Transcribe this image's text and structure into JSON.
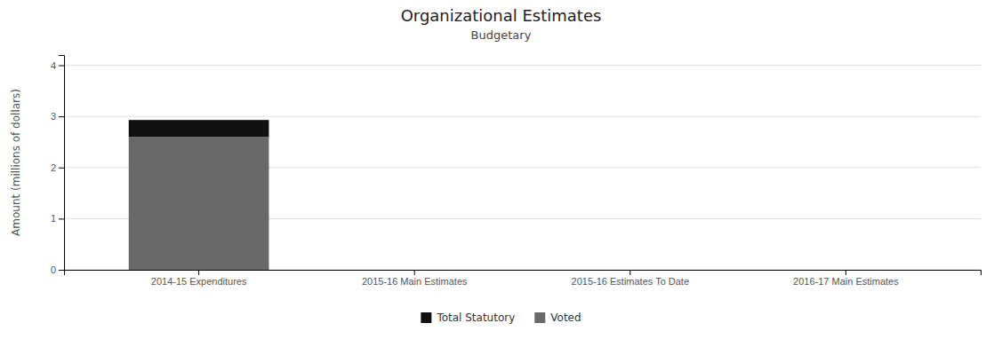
{
  "chart_data": {
    "type": "bar",
    "stacked": true,
    "title": "Organizational Estimates",
    "subtitle": "Budgetary",
    "ylabel": "Amount (millions of dollars)",
    "categories": [
      "2014-15 Expenditures",
      "2015-16 Main Estimates",
      "2015-16 Estimates To Date",
      "2016-17 Main Estimates"
    ],
    "series": [
      {
        "name": "Voted",
        "color": "#696969",
        "values": [
          2.6,
          0,
          0,
          0
        ]
      },
      {
        "name": "Total Statutory",
        "color": "#111111",
        "values": [
          0.33,
          0,
          0,
          0
        ]
      }
    ],
    "ylim": [
      0,
      4.2
    ],
    "yticks": [
      0,
      1,
      2,
      3,
      4
    ],
    "grid": true,
    "legend": "bottom"
  }
}
